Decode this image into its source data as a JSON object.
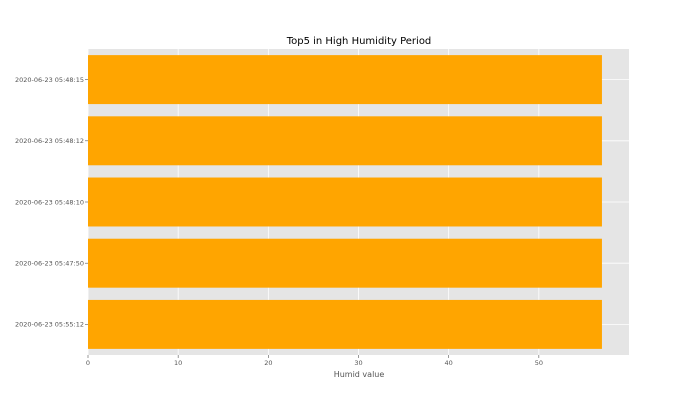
{
  "chart_data": {
    "type": "bar",
    "orientation": "horizontal",
    "title": "Top5 in High Humidity Period",
    "xlabel": "Humid value",
    "ylabel": "",
    "categories": [
      "2020-06-23 05:48:15",
      "2020-06-23 05:48:12",
      "2020-06-23 05:48:10",
      "2020-06-23 05:47:50",
      "2020-06-23 05:55:12"
    ],
    "values": [
      57,
      57,
      57,
      57,
      57
    ],
    "xlim": [
      0,
      60
    ],
    "xticks": [
      0,
      10,
      20,
      30,
      40,
      50
    ],
    "grid": true,
    "bar_color": "#ffa500",
    "background_color": "#e5e5e5",
    "grid_color": "#ffffff"
  }
}
